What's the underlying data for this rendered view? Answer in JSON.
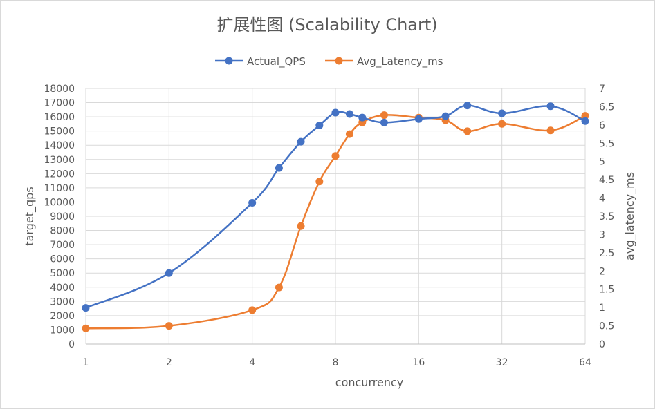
{
  "chart_data": {
    "type": "line",
    "title": "扩展性图 (Scalability Chart)",
    "xlabel": "concurrency",
    "ylabel_left": "target_qps",
    "ylabel_right": "avg_latency_ms",
    "x_scale": "log2",
    "x_ticks": [
      "1",
      "2",
      "4",
      "8",
      "16",
      "32",
      "64"
    ],
    "x_tick_values": [
      1,
      2,
      4,
      8,
      16,
      32,
      64
    ],
    "ylim_left": [
      0,
      18000
    ],
    "y_ticks_left": [
      "0",
      "1000",
      "2000",
      "3000",
      "4000",
      "5000",
      "6000",
      "7000",
      "8000",
      "9000",
      "10000",
      "11000",
      "12000",
      "13000",
      "14000",
      "15000",
      "16000",
      "17000",
      "18000"
    ],
    "ylim_right": [
      0,
      7
    ],
    "y_ticks_right": [
      "0",
      "0.5",
      "1",
      "1.5",
      "2",
      "2.5",
      "3",
      "3.5",
      "4",
      "4.5",
      "5",
      "5.5",
      "6",
      "6.5",
      "7"
    ],
    "grid": true,
    "legend_position": "top",
    "series": [
      {
        "name": "Actual_QPS",
        "axis": "left",
        "color": "#4472c4",
        "x": [
          1,
          2,
          4,
          5,
          6,
          7,
          8,
          9,
          10,
          12,
          16,
          20,
          24,
          32,
          48,
          64
        ],
        "y": [
          2550,
          5000,
          9950,
          12400,
          14250,
          15400,
          16300,
          16200,
          15950,
          15600,
          15850,
          16050,
          16800,
          16250,
          16750,
          15700
        ]
      },
      {
        "name": "Avg_Latency_ms",
        "axis": "right",
        "color": "#ed7d31",
        "x": [
          1,
          2,
          4,
          5,
          6,
          7,
          8,
          9,
          10,
          12,
          16,
          20,
          24,
          32,
          48,
          64
        ],
        "y": [
          0.43,
          0.5,
          0.93,
          1.55,
          3.23,
          4.45,
          5.15,
          5.75,
          6.07,
          6.27,
          6.2,
          6.13,
          5.83,
          6.03,
          5.85,
          6.25
        ]
      }
    ]
  }
}
